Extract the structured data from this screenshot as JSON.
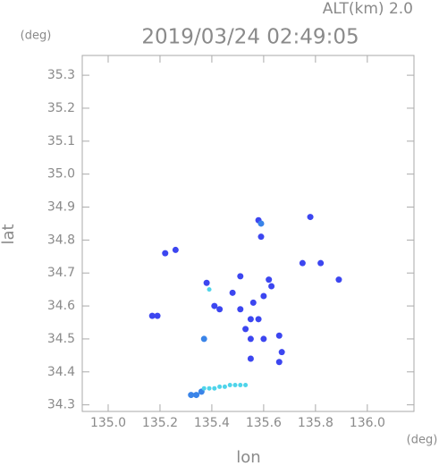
{
  "chart_data": {
    "type": "scatter",
    "header": "ALT(km) 2.0",
    "title": "2019/03/24 02:49:05",
    "y_unit": "(deg)",
    "x_unit": "(deg)",
    "x_label": "lon",
    "y_label": "lat",
    "xlim": [
      134.9,
      136.18
    ],
    "ylim": [
      34.28,
      35.36
    ],
    "xticks": [
      {
        "value": 135.0,
        "label": "135.0"
      },
      135.2,
      135.4,
      135.6,
      135.8,
      {
        "value": 136.0,
        "label": "136.0"
      }
    ],
    "yticks": [
      34.3,
      34.4,
      34.5,
      34.6,
      34.7,
      34.8,
      34.9,
      {
        "value": 35.0,
        "label": "35.0"
      },
      35.1,
      35.2,
      35.3
    ],
    "series": [
      {
        "color": "#3c46f0",
        "x": [
          135.78,
          135.58,
          135.59,
          135.22,
          135.26,
          135.82,
          135.75,
          135.89,
          135.51,
          135.62,
          135.38,
          135.48,
          135.41,
          135.43,
          135.51,
          135.56,
          135.6,
          135.55,
          135.58,
          135.53,
          135.55,
          135.6,
          135.66,
          135.67,
          135.55,
          135.66,
          135.17,
          135.19,
          135.63
        ],
        "values": [
          34.87,
          34.86,
          34.81,
          34.76,
          34.77,
          34.73,
          34.73,
          34.68,
          34.69,
          34.68,
          34.67,
          34.64,
          34.6,
          34.59,
          34.59,
          34.61,
          34.63,
          34.56,
          34.56,
          34.53,
          34.5,
          34.5,
          34.51,
          34.46,
          34.44,
          34.43,
          34.57,
          34.57,
          34.66
        ]
      },
      {
        "color": "#3a84e8",
        "x": [
          135.37,
          135.32,
          135.34,
          135.36,
          135.59
        ],
        "values": [
          34.5,
          34.33,
          34.33,
          34.34,
          34.85
        ]
      },
      {
        "color": "#4fd4ea",
        "x": [
          135.39,
          135.37,
          135.39,
          135.41,
          135.43,
          135.45,
          135.47,
          135.49,
          135.51,
          135.53
        ],
        "values": [
          34.65,
          34.35,
          34.35,
          34.35,
          34.355,
          34.355,
          34.36,
          34.36,
          34.36,
          34.36
        ]
      }
    ]
  }
}
